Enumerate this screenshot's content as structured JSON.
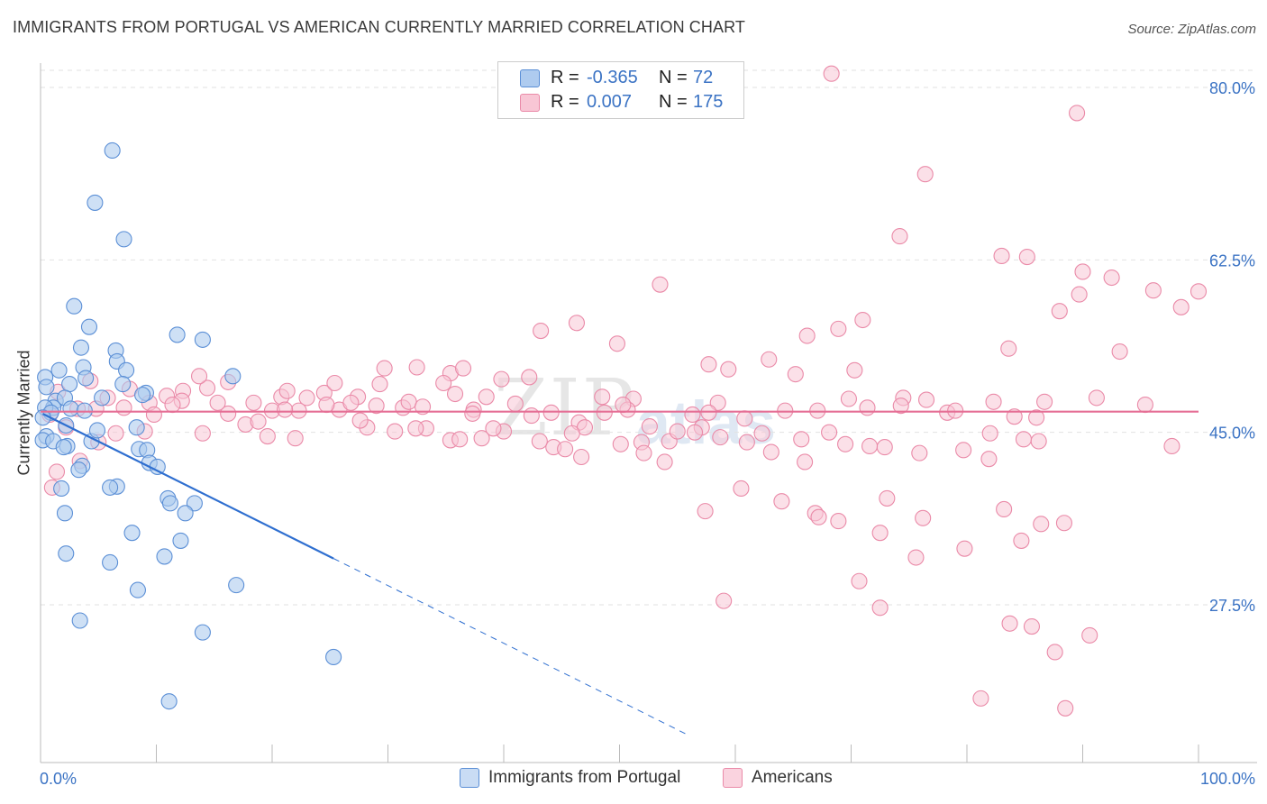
{
  "title": "IMMIGRANTS FROM PORTUGAL VS AMERICAN CURRENTLY MARRIED CORRELATION CHART",
  "source": "Source: ZipAtlas.com",
  "watermark": {
    "part1": "ZIP",
    "part2": "atlas"
  },
  "legend": {
    "rows": [
      {
        "r_label": "R =",
        "r_value": "-0.365",
        "n_label": "N =",
        "n_value": "72",
        "color": "#aecbef"
      },
      {
        "r_label": "R =",
        "r_value": "0.007",
        "n_label": "N =",
        "n_value": "175",
        "color": "#f6b8cb"
      }
    ]
  },
  "bottom_legend": [
    {
      "label": "Immigrants from Portugal",
      "color": "#aecbef"
    },
    {
      "label": "Americans",
      "color": "#f6b8cb"
    }
  ],
  "chart_data": {
    "type": "scatter",
    "title": "IMMIGRANTS FROM PORTUGAL VS AMERICAN CURRENTLY MARRIED CORRELATION CHART",
    "xlabel": "",
    "ylabel": "Currently Married",
    "xlim": [
      0,
      100
    ],
    "ylim": [
      10,
      87
    ],
    "x_tick_labels": [
      "0.0%",
      "100.0%"
    ],
    "y_ticks": [
      27.5,
      45.0,
      62.5,
      80.0
    ],
    "y_tick_labels": [
      "27.5%",
      "45.0%",
      "62.5%",
      "80.0%"
    ],
    "grid": true,
    "colors": {
      "blue_fill": "#aecbef",
      "blue_stroke": "#5b8fd6",
      "blue_line": "#2f6fd0",
      "pink_fill": "#f8c6d5",
      "pink_stroke": "#ea8aa8",
      "pink_line": "#e56f95",
      "tick_label": "#3b73c4",
      "grid": "#e2e2e2"
    },
    "series": [
      {
        "name": "Immigrants from Portugal",
        "points": [
          [
            6.2,
            73.6
          ],
          [
            4.7,
            68.3
          ],
          [
            7.2,
            64.6
          ],
          [
            2.9,
            57.8
          ],
          [
            4.2,
            55.7
          ],
          [
            11.8,
            54.9
          ],
          [
            14.0,
            54.4
          ],
          [
            3.5,
            53.6
          ],
          [
            6.5,
            53.3
          ],
          [
            6.6,
            52.2
          ],
          [
            3.7,
            51.6
          ],
          [
            1.6,
            51.3
          ],
          [
            7.4,
            51.3
          ],
          [
            16.6,
            50.7
          ],
          [
            0.4,
            50.6
          ],
          [
            3.9,
            50.5
          ],
          [
            2.5,
            49.9
          ],
          [
            7.1,
            49.9
          ],
          [
            0.5,
            49.6
          ],
          [
            9.1,
            49.0
          ],
          [
            5.3,
            48.5
          ],
          [
            8.8,
            48.8
          ],
          [
            1.3,
            48.2
          ],
          [
            2.1,
            48.5
          ],
          [
            1.1,
            47.5
          ],
          [
            0.4,
            47.5
          ],
          [
            2.6,
            47.4
          ],
          [
            0.9,
            47.0
          ],
          [
            3.8,
            47.2
          ],
          [
            0.2,
            46.5
          ],
          [
            2.2,
            45.7
          ],
          [
            0.5,
            44.6
          ],
          [
            0.2,
            44.2
          ],
          [
            8.3,
            45.5
          ],
          [
            1.1,
            44.1
          ],
          [
            4.4,
            44.1
          ],
          [
            2.3,
            43.6
          ],
          [
            4.9,
            45.2
          ],
          [
            8.5,
            43.3
          ],
          [
            9.2,
            43.2
          ],
          [
            2.0,
            43.5
          ],
          [
            9.4,
            41.9
          ],
          [
            3.6,
            41.6
          ],
          [
            3.3,
            41.2
          ],
          [
            10.1,
            41.5
          ],
          [
            6.6,
            39.5
          ],
          [
            1.8,
            39.3
          ],
          [
            6.0,
            39.4
          ],
          [
            11.0,
            38.3
          ],
          [
            11.2,
            37.8
          ],
          [
            13.3,
            37.8
          ],
          [
            12.5,
            36.8
          ],
          [
            2.1,
            36.8
          ],
          [
            7.9,
            34.8
          ],
          [
            12.1,
            34.0
          ],
          [
            2.2,
            32.7
          ],
          [
            10.7,
            32.4
          ],
          [
            6.0,
            31.8
          ],
          [
            16.9,
            29.5
          ],
          [
            8.4,
            29.0
          ],
          [
            3.4,
            25.9
          ],
          [
            14.0,
            24.7
          ],
          [
            25.3,
            22.2
          ],
          [
            11.1,
            17.7
          ]
        ]
      },
      {
        "name": "Americans",
        "points": [
          [
            68.3,
            81.4
          ],
          [
            89.5,
            77.4
          ],
          [
            76.4,
            71.2
          ],
          [
            74.2,
            64.9
          ],
          [
            83.0,
            62.9
          ],
          [
            85.2,
            62.8
          ],
          [
            90.0,
            61.3
          ],
          [
            92.5,
            60.7
          ],
          [
            53.5,
            60.0
          ],
          [
            89.7,
            59.0
          ],
          [
            96.1,
            59.4
          ],
          [
            100.0,
            59.3
          ],
          [
            98.5,
            57.7
          ],
          [
            88.0,
            57.3
          ],
          [
            46.3,
            56.1
          ],
          [
            71.0,
            56.4
          ],
          [
            68.9,
            55.5
          ],
          [
            43.2,
            55.3
          ],
          [
            66.2,
            54.8
          ],
          [
            49.8,
            54.0
          ],
          [
            83.6,
            53.5
          ],
          [
            93.2,
            53.2
          ],
          [
            62.9,
            52.4
          ],
          [
            57.7,
            51.9
          ],
          [
            70.3,
            51.3
          ],
          [
            65.2,
            50.9
          ],
          [
            59.4,
            51.4
          ],
          [
            35.4,
            51.0
          ],
          [
            29.3,
            49.9
          ],
          [
            14.4,
            49.5
          ],
          [
            12.3,
            49.2
          ],
          [
            10.9,
            48.7
          ],
          [
            7.7,
            49.4
          ],
          [
            20.8,
            48.6
          ],
          [
            27.4,
            48.6
          ],
          [
            35.8,
            48.9
          ],
          [
            38.5,
            48.6
          ],
          [
            48.5,
            48.6
          ],
          [
            51.2,
            48.4
          ],
          [
            58.5,
            48.0
          ],
          [
            69.8,
            48.4
          ],
          [
            74.5,
            48.5
          ],
          [
            76.5,
            48.3
          ],
          [
            91.2,
            48.5
          ],
          [
            82.3,
            48.1
          ],
          [
            74.3,
            47.7
          ],
          [
            78.3,
            47.0
          ],
          [
            25.8,
            47.3
          ],
          [
            18.4,
            48.0
          ],
          [
            12.2,
            48.2
          ],
          [
            1.5,
            49.1
          ],
          [
            3.2,
            47.4
          ],
          [
            4.8,
            47.4
          ],
          [
            7.2,
            47.5
          ],
          [
            9.4,
            48.0
          ],
          [
            16.2,
            46.9
          ],
          [
            20.0,
            47.2
          ],
          [
            23.0,
            48.5
          ],
          [
            24.5,
            49.0
          ],
          [
            31.3,
            47.5
          ],
          [
            37.4,
            47.3
          ],
          [
            41.0,
            47.9
          ],
          [
            44.1,
            47.0
          ],
          [
            46.5,
            46.0
          ],
          [
            48.7,
            47.0
          ],
          [
            50.7,
            47.3
          ],
          [
            57.7,
            47.0
          ],
          [
            57.1,
            45.5
          ],
          [
            62.3,
            44.9
          ],
          [
            68.1,
            45.0
          ],
          [
            72.9,
            43.5
          ],
          [
            82.0,
            44.9
          ],
          [
            84.9,
            44.3
          ],
          [
            86.2,
            44.1
          ],
          [
            97.7,
            43.6
          ],
          [
            33.3,
            45.4
          ],
          [
            35.4,
            44.2
          ],
          [
            36.2,
            44.3
          ],
          [
            38.1,
            44.4
          ],
          [
            42.4,
            46.7
          ],
          [
            47.0,
            45.5
          ],
          [
            51.9,
            44.0
          ],
          [
            54.3,
            44.1
          ],
          [
            56.5,
            45.0
          ],
          [
            58.7,
            44.5
          ],
          [
            61.0,
            44.0
          ],
          [
            63.1,
            43.0
          ],
          [
            65.7,
            44.3
          ],
          [
            69.5,
            43.8
          ],
          [
            71.6,
            43.6
          ],
          [
            14.0,
            44.9
          ],
          [
            9.0,
            45.1
          ],
          [
            17.7,
            45.8
          ],
          [
            19.6,
            44.6
          ],
          [
            22.0,
            44.4
          ],
          [
            28.2,
            45.5
          ],
          [
            30.6,
            45.1
          ],
          [
            32.4,
            45.4
          ],
          [
            45.9,
            44.9
          ],
          [
            52.6,
            45.6
          ],
          [
            44.3,
            43.5
          ],
          [
            45.3,
            43.3
          ],
          [
            46.7,
            42.5
          ],
          [
            75.9,
            42.9
          ],
          [
            79.7,
            43.2
          ],
          [
            81.9,
            42.3
          ],
          [
            66.0,
            42.0
          ],
          [
            60.5,
            39.3
          ],
          [
            73.1,
            38.3
          ],
          [
            64.0,
            38.0
          ],
          [
            57.4,
            37.0
          ],
          [
            83.2,
            37.2
          ],
          [
            66.9,
            36.8
          ],
          [
            67.2,
            36.4
          ],
          [
            68.9,
            36.0
          ],
          [
            76.2,
            36.3
          ],
          [
            86.4,
            35.7
          ],
          [
            88.4,
            35.8
          ],
          [
            72.5,
            34.8
          ],
          [
            84.7,
            34.0
          ],
          [
            79.8,
            33.2
          ],
          [
            75.6,
            32.3
          ],
          [
            70.7,
            29.9
          ],
          [
            59.0,
            27.9
          ],
          [
            72.5,
            27.2
          ],
          [
            83.7,
            25.6
          ],
          [
            85.6,
            25.3
          ],
          [
            90.6,
            24.4
          ],
          [
            87.6,
            22.7
          ],
          [
            81.2,
            18.0
          ],
          [
            88.5,
            17.0
          ],
          [
            1.4,
            41.0
          ],
          [
            1.0,
            39.4
          ],
          [
            3.4,
            42.1
          ],
          [
            5.0,
            44.0
          ],
          [
            6.5,
            44.9
          ],
          [
            2.2,
            45.5
          ],
          [
            0.8,
            46.8
          ],
          [
            11.4,
            47.8
          ],
          [
            15.3,
            48.0
          ],
          [
            21.3,
            49.2
          ],
          [
            22.3,
            47.2
          ],
          [
            24.7,
            47.8
          ],
          [
            26.8,
            48.0
          ],
          [
            29.0,
            47.7
          ],
          [
            31.8,
            48.1
          ],
          [
            33.0,
            47.6
          ],
          [
            40.0,
            45.1
          ],
          [
            43.1,
            44.1
          ],
          [
            50.1,
            43.8
          ],
          [
            52.1,
            42.9
          ],
          [
            53.9,
            42.0
          ],
          [
            55.0,
            45.1
          ],
          [
            56.3,
            46.8
          ],
          [
            13.7,
            50.7
          ],
          [
            16.2,
            50.1
          ],
          [
            25.4,
            50.0
          ],
          [
            29.7,
            51.5
          ],
          [
            32.5,
            51.6
          ],
          [
            34.8,
            50.0
          ],
          [
            36.5,
            51.5
          ],
          [
            39.8,
            50.4
          ],
          [
            42.2,
            50.6
          ],
          [
            4.3,
            50.2
          ],
          [
            5.8,
            48.5
          ],
          [
            9.8,
            46.8
          ],
          [
            18.8,
            46.1
          ],
          [
            21.1,
            47.3
          ],
          [
            27.6,
            46.2
          ],
          [
            37.3,
            46.9
          ],
          [
            39.1,
            45.4
          ],
          [
            50.3,
            47.8
          ],
          [
            60.8,
            46.4
          ],
          [
            64.3,
            47.2
          ],
          [
            67.1,
            47.2
          ],
          [
            71.4,
            47.5
          ],
          [
            79.0,
            47.2
          ],
          [
            84.1,
            46.6
          ],
          [
            86.0,
            46.5
          ],
          [
            86.7,
            48.1
          ],
          [
            95.4,
            47.8
          ]
        ]
      }
    ],
    "trend_lines": [
      {
        "series": "Immigrants from Portugal",
        "solid_x": [
          0.2,
          25.3
        ],
        "dashed_x": [
          25.3,
          56.0
        ],
        "slope": -0.585,
        "intercept": 47.0
      },
      {
        "series": "Americans",
        "x": [
          0,
          100
        ],
        "slope": 0.0,
        "intercept": 47.1
      }
    ]
  }
}
